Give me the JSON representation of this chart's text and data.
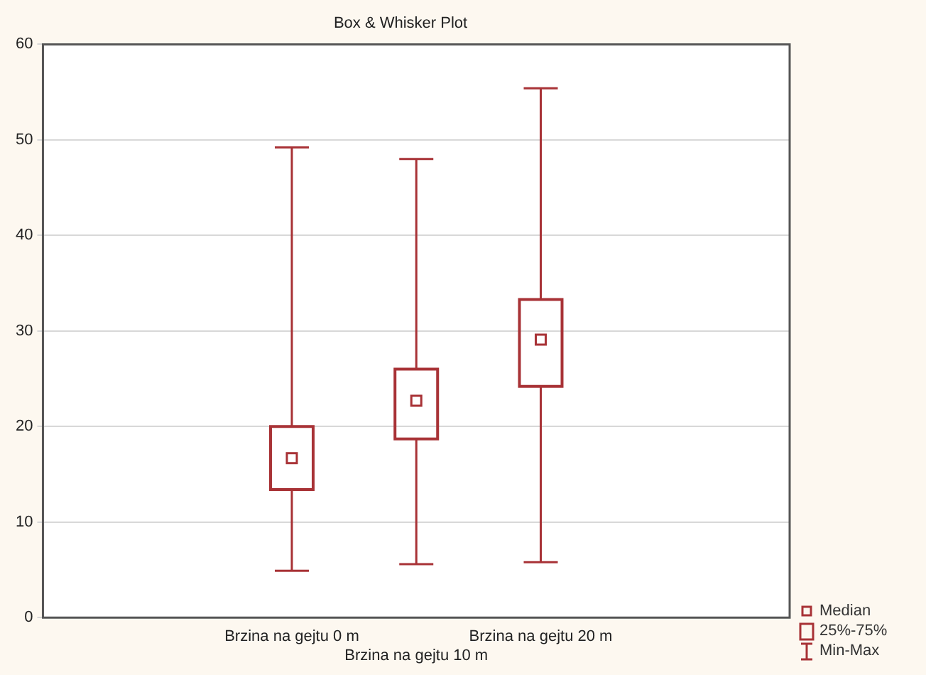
{
  "chart_data": {
    "type": "box",
    "title": "Box & Whisker Plot",
    "categories": [
      null,
      null,
      "Brzina na gejtu 0 m",
      "Brzina na gejtu 10 m",
      "Brzina na gejtu 20 m",
      null,
      null
    ],
    "boxes": [
      null,
      null,
      {
        "low": 4.9,
        "q1": 13.4,
        "median": 16.7,
        "q3": 20,
        "high": 49.2
      },
      {
        "low": 5.6,
        "q1": 18.7,
        "median": 22.7,
        "q3": 26,
        "high": 48
      },
      {
        "low": 5.8,
        "q1": 24.2,
        "median": 29.1,
        "q3": 33.3,
        "high": 55.4
      },
      null,
      null
    ],
    "color": "#a83236",
    "ylim": [
      0,
      60
    ],
    "yticks": [
      0,
      10,
      20,
      30,
      40,
      50,
      60
    ],
    "grid": "y",
    "annotations": [
      "Median",
      "25%-75%",
      "Min-Max"
    ]
  }
}
